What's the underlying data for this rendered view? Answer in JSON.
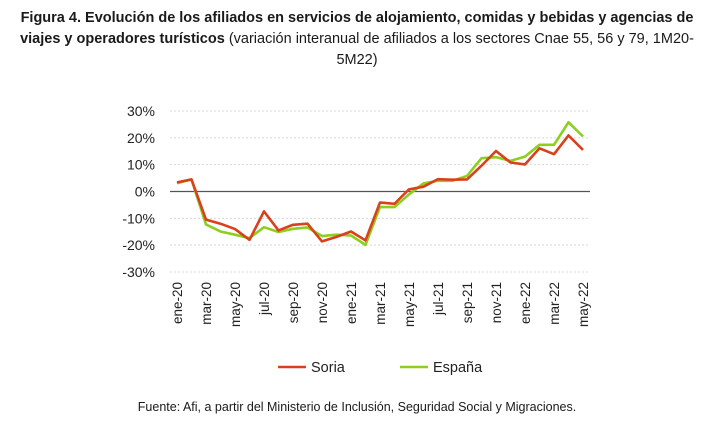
{
  "title": {
    "bold": "Figura 4. Evolución de los afiliados en servicios de alojamiento, comidas y bebidas y agencias de viajes y operadores turísticos",
    "normal": " (variación interanual de afiliados a los sectores Cnae 55, 56 y 79, 1M20-5M22)"
  },
  "footer": "Fuente: Afi, a partir del Ministerio de Inclusión, Seguridad Social y Migraciones.",
  "chart_data": {
    "type": "line",
    "x": [
      "ene-20",
      "feb-20",
      "mar-20",
      "abr-20",
      "may-20",
      "jun-20",
      "jul-20",
      "ago-20",
      "sep-20",
      "oct-20",
      "nov-20",
      "dic-20",
      "ene-21",
      "feb-21",
      "mar-21",
      "abr-21",
      "may-21",
      "jun-21",
      "jul-21",
      "ago-21",
      "sep-21",
      "oct-21",
      "nov-21",
      "dic-21",
      "ene-22",
      "feb-22",
      "mar-22",
      "abr-22",
      "may-22"
    ],
    "tick_labels": [
      "ene-20",
      "mar-20",
      "may-20",
      "jul-20",
      "sep-20",
      "nov-20",
      "ene-21",
      "mar-21",
      "may-21",
      "jul-21",
      "sep-21",
      "nov-21",
      "ene-22",
      "mar-22",
      "may-22"
    ],
    "y_ticks": [
      "30%",
      "20%",
      "10%",
      "0%",
      "-10%",
      "-20%",
      "-30%"
    ],
    "ylim": [
      -30,
      30
    ],
    "grid": true,
    "legend": "bottom",
    "series": [
      {
        "name": "Soria",
        "color": "#d9401c",
        "values": [
          3.4,
          4.5,
          -10.5,
          -12,
          -14,
          -18,
          -7.4,
          -14.5,
          -12.4,
          -12,
          -18.6,
          -16.9,
          -14.9,
          -18.2,
          -4.1,
          -4.6,
          0.8,
          1.8,
          4.6,
          4.4,
          4.5,
          9.6,
          15.1,
          10.8,
          10.1,
          16.1,
          13.9,
          20.9,
          15.5
        ]
      },
      {
        "name": "España",
        "color": "#8ccf1e",
        "values": [
          3.1,
          4.5,
          -12.3,
          -14.9,
          -16.1,
          -17.4,
          -13.3,
          -15.1,
          -13.9,
          -13.4,
          -16.6,
          -16.1,
          -16.4,
          -19.9,
          -5.8,
          -5.8,
          -1.1,
          3,
          4,
          4,
          5.8,
          12.4,
          12.8,
          11.4,
          13,
          17.4,
          17.4,
          25.8,
          20.5
        ]
      }
    ]
  }
}
